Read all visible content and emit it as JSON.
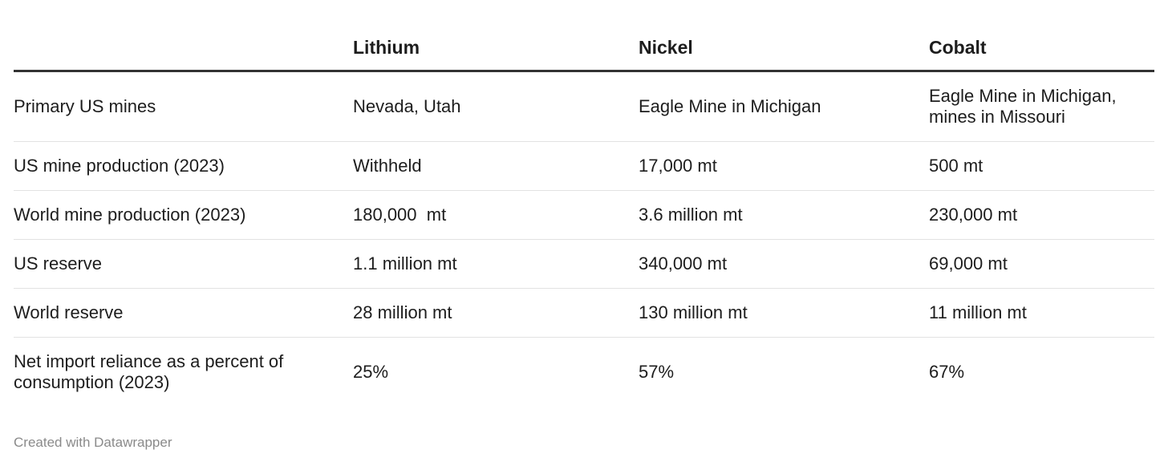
{
  "chart_data": {
    "type": "table",
    "columns": [
      "",
      "Lithium",
      "Nickel",
      "Cobalt"
    ],
    "rows": [
      [
        "Primary US mines",
        "Nevada, Utah",
        "Eagle Mine in Michigan",
        "Eagle Mine in Michigan, mines in Missouri"
      ],
      [
        "US mine production (2023)",
        "Withheld",
        "17,000 mt",
        "500 mt"
      ],
      [
        "World mine production (2023)",
        "180,000  mt",
        "3.6 million mt",
        "230,000 mt"
      ],
      [
        "US reserve",
        "1.1 million mt",
        "340,000 mt",
        "69,000 mt"
      ],
      [
        "World reserve",
        "28 million mt",
        "130 million mt",
        "11 million mt"
      ],
      [
        "Net import reliance as a percent of consumption (2023)",
        "25%",
        "57%",
        "67%"
      ]
    ]
  },
  "footer": {
    "credit": "Created with Datawrapper"
  },
  "colors": {
    "text": "#1d1d1d",
    "header_rule": "#333333",
    "row_rule": "#e2e2e2",
    "footer_text": "#8a8a8a"
  }
}
